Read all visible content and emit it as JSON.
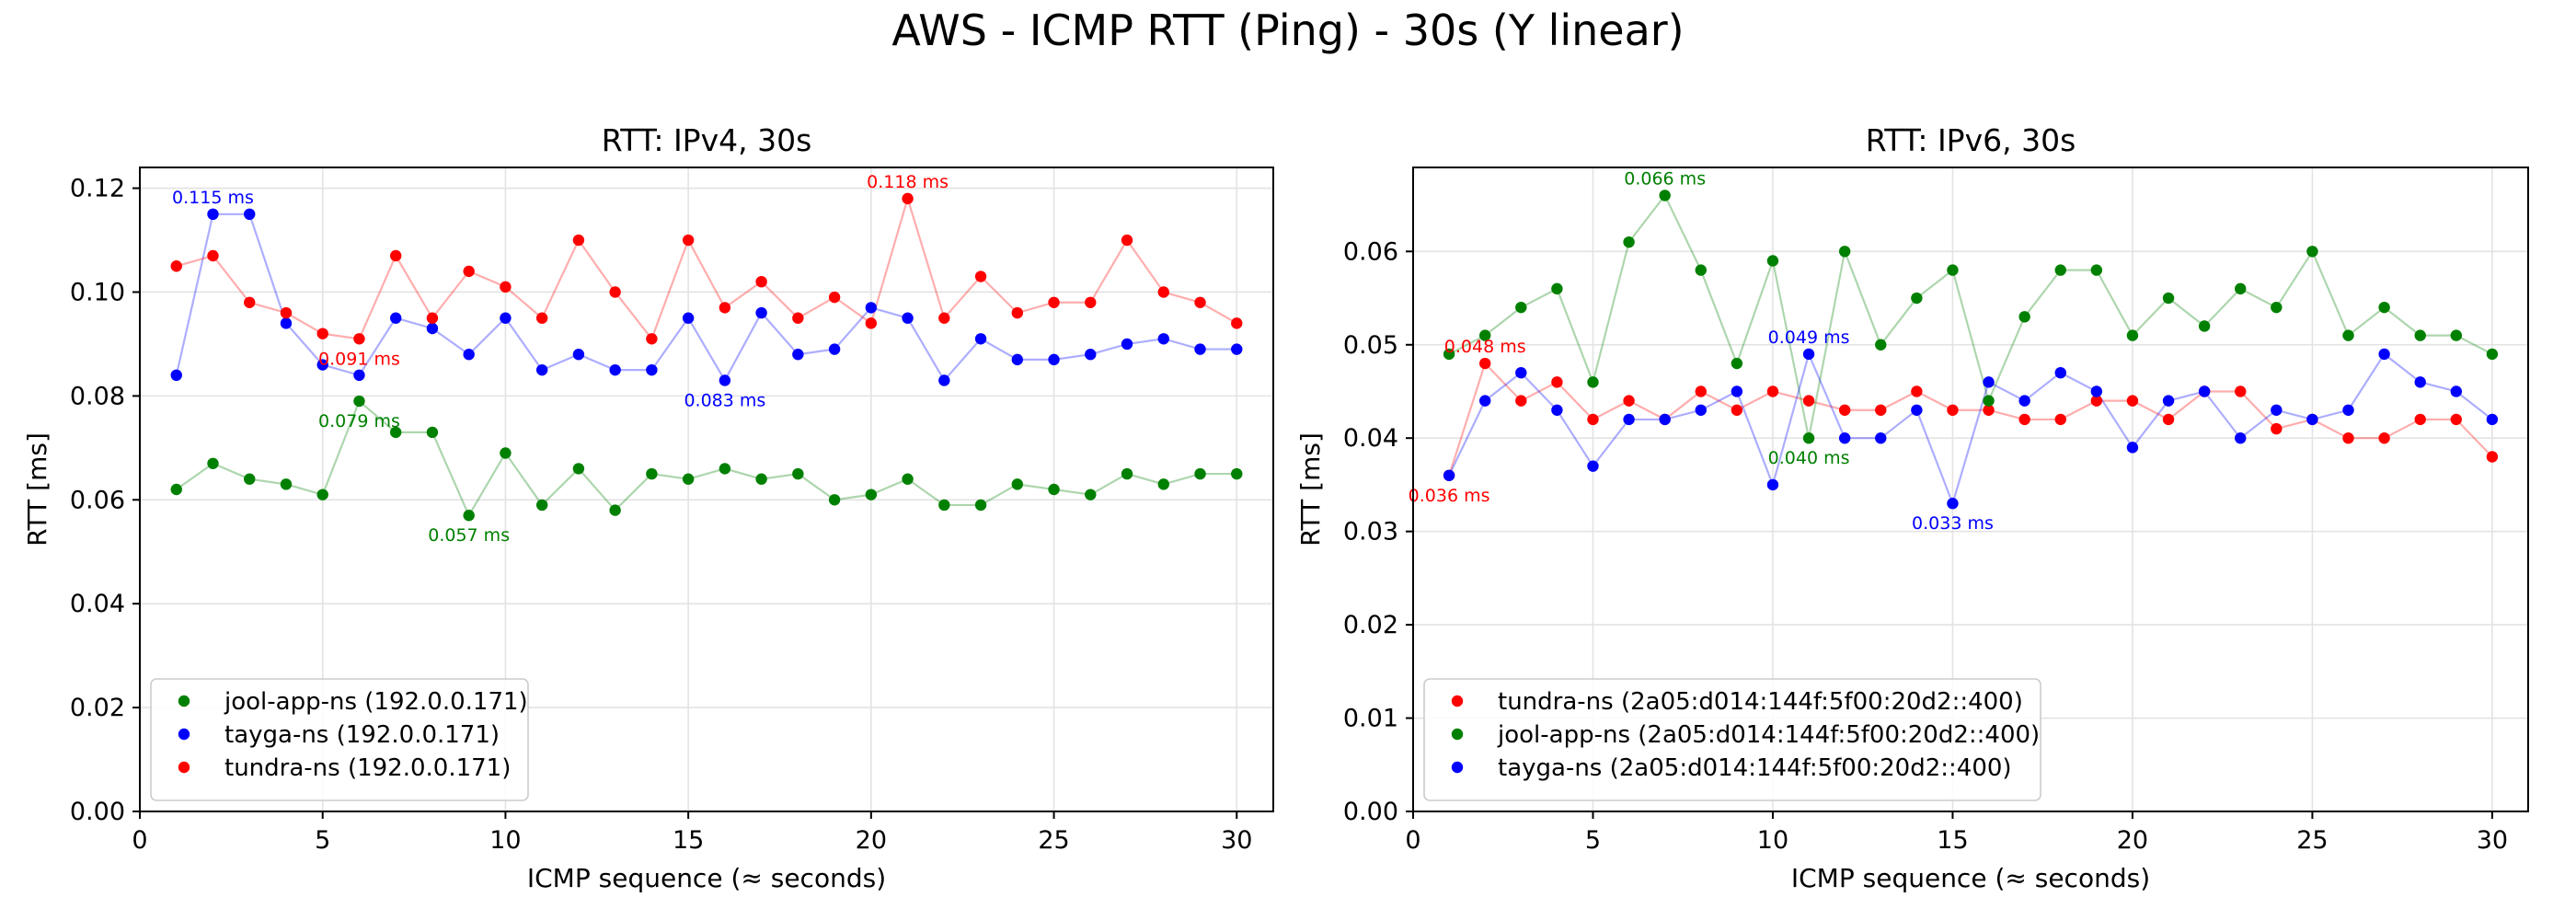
{
  "figure": {
    "title": "AWS - ICMP RTT (Ping) - 30s (Y linear)"
  },
  "chart_data": [
    {
      "type": "line",
      "title": "RTT: IPv4, 30s",
      "xlabel": "ICMP sequence (≈ seconds)",
      "ylabel": "RTT [ms]",
      "xlim": [
        0,
        31
      ],
      "ylim": [
        0,
        0.124
      ],
      "xticks": [
        0,
        5,
        10,
        15,
        20,
        25,
        30
      ],
      "yticks": [
        0.0,
        0.02,
        0.04,
        0.06,
        0.08,
        0.1,
        0.12
      ],
      "ytick_decimals": 2,
      "grid": true,
      "legend_position": "lower-left",
      "x": [
        1,
        2,
        3,
        4,
        5,
        6,
        7,
        8,
        9,
        10,
        11,
        12,
        13,
        14,
        15,
        16,
        17,
        18,
        19,
        20,
        21,
        22,
        23,
        24,
        25,
        26,
        27,
        28,
        29,
        30
      ],
      "series": [
        {
          "name": "jool-app-ns (192.0.0.171)",
          "color": "#008000",
          "values": [
            0.062,
            0.067,
            0.064,
            0.063,
            0.061,
            0.079,
            0.073,
            0.073,
            0.057,
            0.069,
            0.059,
            0.066,
            0.058,
            0.065,
            0.064,
            0.066,
            0.064,
            0.065,
            0.06,
            0.061,
            0.064,
            0.059,
            0.059,
            0.063,
            0.062,
            0.061,
            0.065,
            0.063,
            0.065,
            0.065
          ]
        },
        {
          "name": "tayga-ns (192.0.0.171)",
          "color": "#0000ff",
          "values": [
            0.084,
            0.115,
            0.115,
            0.094,
            0.086,
            0.084,
            0.095,
            0.093,
            0.088,
            0.095,
            0.085,
            0.088,
            0.085,
            0.085,
            0.095,
            0.083,
            0.096,
            0.088,
            0.089,
            0.097,
            0.095,
            0.083,
            0.091,
            0.087,
            0.087,
            0.088,
            0.09,
            0.091,
            0.089,
            0.089
          ]
        },
        {
          "name": "tundra-ns (192.0.0.171)",
          "color": "#ff0000",
          "values": [
            0.105,
            0.107,
            0.098,
            0.096,
            0.092,
            0.091,
            0.107,
            0.095,
            0.104,
            0.101,
            0.095,
            0.11,
            0.1,
            0.091,
            0.11,
            0.097,
            0.102,
            0.095,
            0.099,
            0.094,
            0.118,
            0.095,
            0.103,
            0.096,
            0.098,
            0.098,
            0.11,
            0.1,
            0.098,
            0.094
          ]
        }
      ],
      "annotations": [
        {
          "text": "0.115 ms",
          "x": 2,
          "y": 0.115,
          "color": "#0000ff",
          "pos": "above"
        },
        {
          "text": "0.118 ms",
          "x": 21,
          "y": 0.118,
          "color": "#ff0000",
          "pos": "above"
        },
        {
          "text": "0.091 ms",
          "x": 6,
          "y": 0.091,
          "color": "#ff0000",
          "pos": "below"
        },
        {
          "text": "0.079 ms",
          "x": 6,
          "y": 0.079,
          "color": "#008000",
          "pos": "below"
        },
        {
          "text": "0.083 ms",
          "x": 16,
          "y": 0.083,
          "color": "#0000ff",
          "pos": "below"
        },
        {
          "text": "0.057 ms",
          "x": 9,
          "y": 0.057,
          "color": "#008000",
          "pos": "below"
        }
      ]
    },
    {
      "type": "line",
      "title": "RTT: IPv6, 30s",
      "xlabel": "ICMP sequence (≈ seconds)",
      "ylabel": "RTT [ms]",
      "xlim": [
        0,
        31
      ],
      "ylim": [
        0,
        0.069
      ],
      "xticks": [
        0,
        5,
        10,
        15,
        20,
        25,
        30
      ],
      "yticks": [
        0.0,
        0.01,
        0.02,
        0.03,
        0.04,
        0.05,
        0.06
      ],
      "ytick_decimals": 2,
      "grid": true,
      "legend_position": "lower-left",
      "x": [
        1,
        2,
        3,
        4,
        5,
        6,
        7,
        8,
        9,
        10,
        11,
        12,
        13,
        14,
        15,
        16,
        17,
        18,
        19,
        20,
        21,
        22,
        23,
        24,
        25,
        26,
        27,
        28,
        29,
        30
      ],
      "series": [
        {
          "name": "tundra-ns (2a05:d014:144f:5f00:20d2::400)",
          "color": "#ff0000",
          "values": [
            0.036,
            0.048,
            0.044,
            0.046,
            0.042,
            0.044,
            0.042,
            0.045,
            0.043,
            0.045,
            0.044,
            0.043,
            0.043,
            0.045,
            0.043,
            0.043,
            0.042,
            0.042,
            0.044,
            0.044,
            0.042,
            0.045,
            0.045,
            0.041,
            0.042,
            0.04,
            0.04,
            0.042,
            0.042,
            0.038
          ]
        },
        {
          "name": "jool-app-ns (2a05:d014:144f:5f00:20d2::400)",
          "color": "#008000",
          "values": [
            0.049,
            0.051,
            0.054,
            0.056,
            0.046,
            0.061,
            0.066,
            0.058,
            0.048,
            0.059,
            0.04,
            0.06,
            0.05,
            0.055,
            0.058,
            0.044,
            0.053,
            0.058,
            0.058,
            0.051,
            0.055,
            0.052,
            0.056,
            0.054,
            0.06,
            0.051,
            0.054,
            0.051,
            0.051,
            0.049
          ]
        },
        {
          "name": "tayga-ns (2a05:d014:144f:5f00:20d2::400)",
          "color": "#0000ff",
          "values": [
            0.036,
            0.044,
            0.047,
            0.043,
            0.037,
            0.042,
            0.042,
            0.043,
            0.045,
            0.035,
            0.049,
            0.04,
            0.04,
            0.043,
            0.033,
            0.046,
            0.044,
            0.047,
            0.045,
            0.039,
            0.044,
            0.045,
            0.04,
            0.043,
            0.042,
            0.043,
            0.049,
            0.046,
            0.045,
            0.042
          ]
        }
      ],
      "annotations": [
        {
          "text": "0.066 ms",
          "x": 7,
          "y": 0.066,
          "color": "#008000",
          "pos": "above"
        },
        {
          "text": "0.048 ms",
          "x": 2,
          "y": 0.048,
          "color": "#ff0000",
          "pos": "above"
        },
        {
          "text": "0.049 ms",
          "x": 11,
          "y": 0.049,
          "color": "#0000ff",
          "pos": "above"
        },
        {
          "text": "0.040 ms",
          "x": 11,
          "y": 0.04,
          "color": "#008000",
          "pos": "below"
        },
        {
          "text": "0.036 ms",
          "x": 1,
          "y": 0.036,
          "color": "#ff0000",
          "pos": "below"
        },
        {
          "text": "0.033 ms",
          "x": 15,
          "y": 0.033,
          "color": "#0000ff",
          "pos": "below"
        }
      ]
    }
  ]
}
